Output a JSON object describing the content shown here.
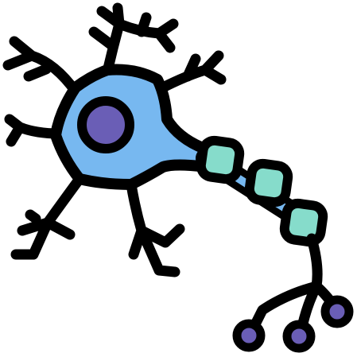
{
  "illustration": {
    "icon": "neuron-icon",
    "colors": {
      "outline": "#000000",
      "cell_body": "#77b8f0",
      "nucleus": "#6a5eb6",
      "myelin": "#86dccb",
      "axon_inner": "#77b8f0",
      "terminal": "#6a5eb6",
      "background": "#ffffff"
    }
  }
}
